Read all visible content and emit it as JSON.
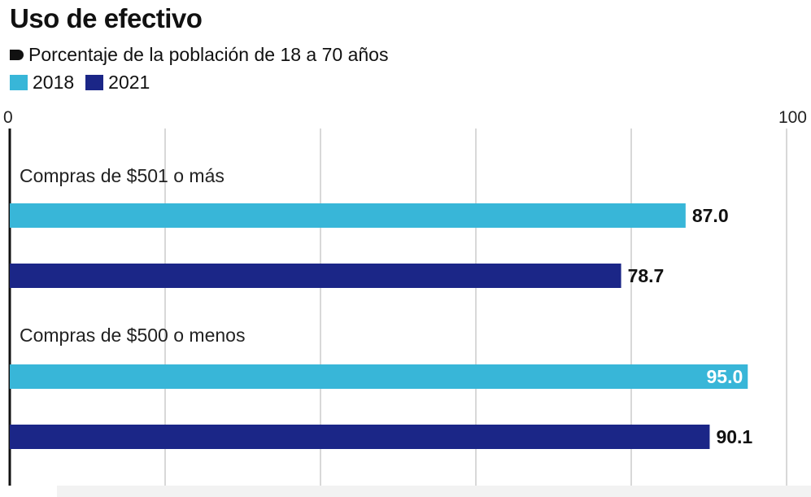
{
  "chart_data": {
    "type": "bar",
    "orientation": "horizontal",
    "title": "Uso de efectivo",
    "subtitle": "Porcentaje de la población de 18 a 70 años",
    "xlim": [
      0,
      100
    ],
    "x_ticks": [
      "0",
      "100"
    ],
    "grid": true,
    "legend_placement": "top-left",
    "categories": [
      "Compras de $501 o más",
      "Compras de $500 o menos"
    ],
    "series": [
      {
        "name": "2018",
        "color": "#38b6d8",
        "values": [
          87.0,
          95.0
        ],
        "labels": [
          "87.0",
          "95.0"
        ]
      },
      {
        "name": "2021",
        "color": "#1b2687",
        "values": [
          78.7,
          90.1
        ],
        "labels": [
          "78.7",
          "90.1"
        ]
      }
    ]
  }
}
